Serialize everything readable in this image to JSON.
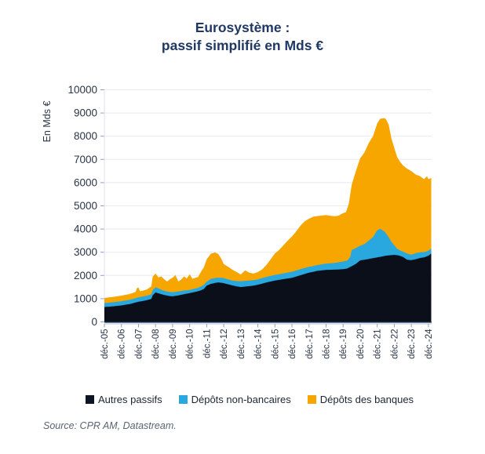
{
  "title": {
    "line1": "Eurosystème :",
    "line2": "passif simplifié en Mds €"
  },
  "source": "Source: CPR AM, Datastream.",
  "colors": {
    "title": "#1F3864",
    "axis_line": "#17365D",
    "tick": "#8EA0C2",
    "gridline": "#E8E8F1",
    "tick_label": "#2A3547",
    "autres_passifs": "#0B0F1A",
    "depots_non_bancaires": "#29A7DF",
    "depots_des_banques": "#F7A600"
  },
  "legend": [
    {
      "label": "Autres passifs",
      "color": "#0D1424"
    },
    {
      "label": "Dépôts non-bancaires",
      "color": "#29A7DF"
    },
    {
      "label": "Dépôts des banques",
      "color": "#F7A600"
    }
  ],
  "chart_data": {
    "type": "area",
    "stacked": true,
    "title": "Eurosystème : passif simplifié en Mds €",
    "ylabel": "En Mds €",
    "xlabel": "",
    "ylim": [
      0,
      10000
    ],
    "ytick_step": 1000,
    "grid": "horizontal, very light",
    "legend_position": "bottom",
    "x_unit": "monthly, month_index 0 = déc.-05, last index 230 ≈ févr.-25",
    "x_tick_labels": [
      "déc.-05",
      "déc.-06",
      "déc.-07",
      "déc.-08",
      "déc.-09",
      "déc.-10",
      "déc.-11",
      "déc.-12",
      "déc.-13",
      "déc.-14",
      "déc.-15",
      "déc.-16",
      "déc.-17",
      "déc.-18",
      "déc.-19",
      "déc.-20",
      "déc.-21",
      "déc.-22",
      "déc.-23",
      "déc.-24"
    ],
    "months_total": 230,
    "values_are": "cumulative stack tops in Mds € (each series drawn down to previous series top); anchors = [month_index, value], linearly interpolated monthly",
    "series": [
      {
        "name": "Autres passifs",
        "color": "#0B0F1A",
        "anchors": [
          [
            0,
            640
          ],
          [
            6,
            670
          ],
          [
            12,
            710
          ],
          [
            18,
            770
          ],
          [
            23,
            850
          ],
          [
            24,
            870
          ],
          [
            27,
            900
          ],
          [
            30,
            940
          ],
          [
            33,
            990
          ],
          [
            34,
            1150
          ],
          [
            36,
            1270
          ],
          [
            38,
            1230
          ],
          [
            42,
            1160
          ],
          [
            46,
            1110
          ],
          [
            48,
            1100
          ],
          [
            52,
            1140
          ],
          [
            56,
            1190
          ],
          [
            60,
            1240
          ],
          [
            64,
            1295
          ],
          [
            66,
            1320
          ],
          [
            68,
            1360
          ],
          [
            70,
            1420
          ],
          [
            72,
            1560
          ],
          [
            75,
            1640
          ],
          [
            78,
            1680
          ],
          [
            80,
            1700
          ],
          [
            84,
            1670
          ],
          [
            87,
            1620
          ],
          [
            90,
            1570
          ],
          [
            93,
            1530
          ],
          [
            96,
            1500
          ],
          [
            99,
            1520
          ],
          [
            102,
            1540
          ],
          [
            105,
            1560
          ],
          [
            108,
            1600
          ],
          [
            111,
            1650
          ],
          [
            114,
            1700
          ],
          [
            120,
            1780
          ],
          [
            126,
            1840
          ],
          [
            132,
            1900
          ],
          [
            138,
            2010
          ],
          [
            144,
            2120
          ],
          [
            150,
            2200
          ],
          [
            156,
            2240
          ],
          [
            162,
            2250
          ],
          [
            168,
            2270
          ],
          [
            171,
            2300
          ],
          [
            174,
            2400
          ],
          [
            177,
            2500
          ],
          [
            180,
            2650
          ],
          [
            186,
            2710
          ],
          [
            192,
            2780
          ],
          [
            195,
            2810
          ],
          [
            198,
            2850
          ],
          [
            204,
            2890
          ],
          [
            207,
            2860
          ],
          [
            210,
            2800
          ],
          [
            213,
            2680
          ],
          [
            216,
            2660
          ],
          [
            219,
            2700
          ],
          [
            222,
            2750
          ],
          [
            225,
            2780
          ],
          [
            228,
            2850
          ],
          [
            230,
            2950
          ]
        ]
      },
      {
        "name": "Dépôts non-bancaires",
        "color": "#29A7DF",
        "anchors": [
          [
            0,
            810
          ],
          [
            6,
            845
          ],
          [
            12,
            890
          ],
          [
            18,
            955
          ],
          [
            23,
            1040
          ],
          [
            24,
            1060
          ],
          [
            27,
            1090
          ],
          [
            30,
            1130
          ],
          [
            33,
            1190
          ],
          [
            34,
            1370
          ],
          [
            36,
            1490
          ],
          [
            38,
            1440
          ],
          [
            42,
            1340
          ],
          [
            46,
            1290
          ],
          [
            48,
            1280
          ],
          [
            52,
            1310
          ],
          [
            56,
            1350
          ],
          [
            60,
            1375
          ],
          [
            64,
            1440
          ],
          [
            66,
            1470
          ],
          [
            68,
            1530
          ],
          [
            70,
            1600
          ],
          [
            72,
            1730
          ],
          [
            75,
            1850
          ],
          [
            78,
            1890
          ],
          [
            80,
            1905
          ],
          [
            84,
            1890
          ],
          [
            87,
            1830
          ],
          [
            90,
            1780
          ],
          [
            93,
            1760
          ],
          [
            96,
            1750
          ],
          [
            99,
            1770
          ],
          [
            102,
            1780
          ],
          [
            105,
            1800
          ],
          [
            108,
            1830
          ],
          [
            111,
            1890
          ],
          [
            114,
            1940
          ],
          [
            120,
            2020
          ],
          [
            126,
            2090
          ],
          [
            132,
            2160
          ],
          [
            138,
            2270
          ],
          [
            144,
            2370
          ],
          [
            150,
            2450
          ],
          [
            156,
            2510
          ],
          [
            162,
            2540
          ],
          [
            168,
            2600
          ],
          [
            171,
            2650
          ],
          [
            173,
            2800
          ],
          [
            174,
            3100
          ],
          [
            177,
            3180
          ],
          [
            180,
            3280
          ],
          [
            183,
            3350
          ],
          [
            186,
            3500
          ],
          [
            189,
            3650
          ],
          [
            192,
            3950
          ],
          [
            194,
            4010
          ],
          [
            197,
            3900
          ],
          [
            198,
            3820
          ],
          [
            200,
            3650
          ],
          [
            202,
            3450
          ],
          [
            204,
            3300
          ],
          [
            206,
            3150
          ],
          [
            208,
            3080
          ],
          [
            210,
            3030
          ],
          [
            213,
            2950
          ],
          [
            216,
            2900
          ],
          [
            219,
            2960
          ],
          [
            222,
            3000
          ],
          [
            225,
            3010
          ],
          [
            227,
            3040
          ],
          [
            228,
            3070
          ],
          [
            230,
            3150
          ]
        ]
      },
      {
        "name": "Dépôts des banques",
        "color": "#F7A600",
        "anchors": [
          [
            0,
            1030
          ],
          [
            6,
            1075
          ],
          [
            12,
            1130
          ],
          [
            18,
            1205
          ],
          [
            22,
            1290
          ],
          [
            23,
            1460
          ],
          [
            24,
            1480
          ],
          [
            25,
            1320
          ],
          [
            27,
            1345
          ],
          [
            30,
            1400
          ],
          [
            33,
            1530
          ],
          [
            34,
            1950
          ],
          [
            36,
            2080
          ],
          [
            38,
            1920
          ],
          [
            40,
            1960
          ],
          [
            42,
            1840
          ],
          [
            44,
            1740
          ],
          [
            46,
            1830
          ],
          [
            48,
            1900
          ],
          [
            50,
            2020
          ],
          [
            52,
            1740
          ],
          [
            54,
            1820
          ],
          [
            56,
            1960
          ],
          [
            58,
            1870
          ],
          [
            60,
            2050
          ],
          [
            62,
            1850
          ],
          [
            64,
            1900
          ],
          [
            66,
            1940
          ],
          [
            68,
            2160
          ],
          [
            70,
            2350
          ],
          [
            72,
            2700
          ],
          [
            75,
            2940
          ],
          [
            78,
            2990
          ],
          [
            80,
            2930
          ],
          [
            82,
            2750
          ],
          [
            84,
            2490
          ],
          [
            87,
            2380
          ],
          [
            90,
            2250
          ],
          [
            93,
            2150
          ],
          [
            96,
            2040
          ],
          [
            99,
            2220
          ],
          [
            102,
            2120
          ],
          [
            105,
            2080
          ],
          [
            108,
            2150
          ],
          [
            111,
            2260
          ],
          [
            114,
            2450
          ],
          [
            117,
            2700
          ],
          [
            120,
            2950
          ],
          [
            123,
            3100
          ],
          [
            126,
            3300
          ],
          [
            129,
            3500
          ],
          [
            132,
            3680
          ],
          [
            135,
            3900
          ],
          [
            138,
            4150
          ],
          [
            141,
            4330
          ],
          [
            144,
            4450
          ],
          [
            147,
            4530
          ],
          [
            150,
            4560
          ],
          [
            156,
            4600
          ],
          [
            159,
            4570
          ],
          [
            162,
            4550
          ],
          [
            165,
            4580
          ],
          [
            168,
            4690
          ],
          [
            170,
            4720
          ],
          [
            172,
            5100
          ],
          [
            174,
            5900
          ],
          [
            177,
            6500
          ],
          [
            180,
            7050
          ],
          [
            183,
            7300
          ],
          [
            186,
            7700
          ],
          [
            189,
            8000
          ],
          [
            192,
            8550
          ],
          [
            194,
            8750
          ],
          [
            197,
            8780
          ],
          [
            198,
            8740
          ],
          [
            200,
            8500
          ],
          [
            202,
            7900
          ],
          [
            204,
            7500
          ],
          [
            206,
            7100
          ],
          [
            208,
            6900
          ],
          [
            210,
            6750
          ],
          [
            213,
            6600
          ],
          [
            216,
            6500
          ],
          [
            219,
            6350
          ],
          [
            222,
            6280
          ],
          [
            225,
            6150
          ],
          [
            227,
            6280
          ],
          [
            228,
            6150
          ],
          [
            230,
            6200
          ]
        ]
      }
    ]
  }
}
